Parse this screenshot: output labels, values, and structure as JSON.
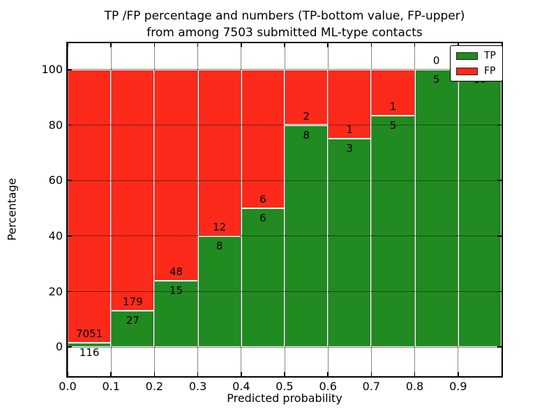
{
  "title": {
    "line1": "TP /FP percentage and numbers (TP-bottom value, FP-upper)",
    "line2": "from among 7503 submitted ML-type contacts"
  },
  "y_axis": {
    "label": "Percentage",
    "ticks": [
      0,
      20,
      40,
      60,
      80,
      100
    ]
  },
  "x_axis": {
    "label": "Predicted probability",
    "ticks": [
      "0.0",
      "0.1",
      "0.2",
      "0.3",
      "0.4",
      "0.5",
      "0.6",
      "0.7",
      "0.8",
      "0.9"
    ]
  },
  "legend": {
    "position": "upper right",
    "items": [
      {
        "label": "TP",
        "color": "#218a21"
      },
      {
        "label": "FP",
        "color": "#fc2a1a"
      }
    ]
  },
  "chart_data": {
    "type": "bar",
    "stacked": true,
    "orientation": "vertical",
    "title": "TP /FP percentage and numbers (TP-bottom value, FP-upper) from among 7503 submitted ML-type contacts",
    "xlabel": "Predicted probability",
    "ylabel": "Percentage",
    "total_contacts": 7503,
    "bin_edges": [
      0.0,
      0.1,
      0.2,
      0.3,
      0.4,
      0.5,
      0.6,
      0.7,
      0.8,
      0.9,
      1.0
    ],
    "series": [
      {
        "name": "TP",
        "color": "#218a21",
        "counts": [
          116,
          27,
          15,
          8,
          6,
          8,
          3,
          5,
          5,
          10
        ],
        "percent": [
          1.62,
          13.11,
          23.81,
          40.0,
          50.0,
          80.0,
          75.0,
          83.33,
          100.0,
          100.0
        ]
      },
      {
        "name": "FP",
        "color": "#fc2a1a",
        "counts": [
          7051,
          179,
          48,
          12,
          6,
          2,
          1,
          1,
          0,
          0
        ],
        "percent": [
          98.38,
          86.89,
          76.19,
          60.0,
          50.0,
          20.0,
          25.0,
          16.67,
          0.0,
          0.0
        ]
      }
    ],
    "ylim": [
      -10.5,
      109.5
    ],
    "xlim": [
      0.0,
      1.0
    ],
    "grid": "dotted",
    "legend_position": "upper right",
    "annotation_note": "TP count drawn below the stack boundary, FP count above it"
  }
}
